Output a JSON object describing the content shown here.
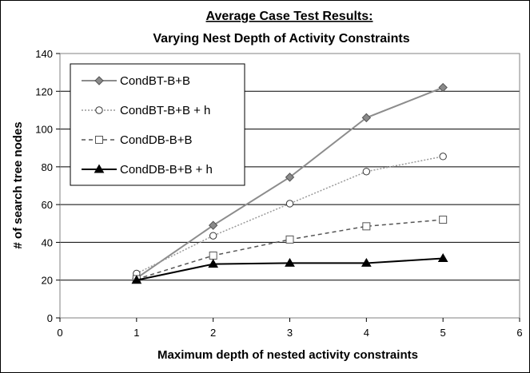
{
  "chart_data": {
    "type": "line",
    "title": "Average Case Test Results:",
    "subtitle": "Varying Nest Depth of Activity Constraints",
    "xlabel": "Maximum depth of nested activity constraints",
    "ylabel": "# of search tree nodes",
    "xlim": [
      0,
      6
    ],
    "ylim": [
      0,
      140
    ],
    "xticks": [
      0,
      1,
      2,
      3,
      4,
      5,
      6
    ],
    "yticks": [
      0,
      20,
      40,
      60,
      80,
      100,
      120,
      140
    ],
    "grid": "horizontal",
    "legend_position": "top-left",
    "x": [
      1,
      2,
      3,
      4,
      5
    ],
    "series": [
      {
        "name": "CondBT-B+B",
        "values": [
          21,
          49,
          74.5,
          106,
          122
        ],
        "color": "#8c8c8c",
        "marker": "diamond",
        "line": "solid"
      },
      {
        "name": "CondBT-B+B + h",
        "values": [
          23.5,
          43.5,
          60.5,
          77.5,
          85.5
        ],
        "color": "#9a9a9a",
        "marker": "circle",
        "line": "dotted"
      },
      {
        "name": "CondDB-B+B",
        "values": [
          20.5,
          33,
          41.5,
          48.5,
          52
        ],
        "color": "#555555",
        "marker": "square",
        "line": "dashed"
      },
      {
        "name": "CondDB-B+B + h",
        "values": [
          20,
          28.5,
          29,
          29,
          31.5
        ],
        "color": "#000000",
        "marker": "triangle",
        "line": "solid"
      }
    ]
  }
}
